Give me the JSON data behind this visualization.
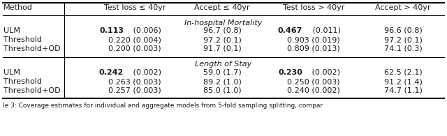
{
  "col_headers": [
    "Method",
    "Test loss ≤ 40yr",
    "Accept ≤ 40yr",
    "Test loss > 40yr",
    "Accept > 40yr"
  ],
  "section1_title": "In-hospital Mortality",
  "section2_title": "Length of Stay",
  "rows": [
    {
      "section": "In-hospital Mortality",
      "method": "ULM",
      "c1": "0.113",
      "c1_suffix": " (0.006)",
      "c1_bold": true,
      "c2": "96.7 (0.8)",
      "c2_bold": false,
      "c3": "0.467",
      "c3_suffix": " (0.011)",
      "c3_bold": true,
      "c4": "96.6 (0.8)",
      "c4_bold": false
    },
    {
      "section": "In-hospital Mortality",
      "method": "Threshold",
      "c1": "0.220 (0.004)",
      "c1_suffix": "",
      "c1_bold": false,
      "c2": "97.2 (0.1)",
      "c2_bold": false,
      "c3": "0.903 (0.019)",
      "c3_suffix": "",
      "c3_bold": false,
      "c4": "97.2 (0.1)",
      "c4_bold": false
    },
    {
      "section": "In-hospital Mortality",
      "method": "Threshold+OD",
      "c1": "0.200 (0.003)",
      "c1_suffix": "",
      "c1_bold": false,
      "c2": "91.7 (0.1)",
      "c2_bold": false,
      "c3": "0.809 (0.013)",
      "c3_suffix": "",
      "c3_bold": false,
      "c4": "74.1 (0.3)",
      "c4_bold": false
    },
    {
      "section": "Length of Stay",
      "method": "ULM",
      "c1": "0.242",
      "c1_suffix": " (0.002)",
      "c1_bold": true,
      "c2": "59.0 (1.7)",
      "c2_bold": false,
      "c3": "0.230",
      "c3_suffix": " (0.002)",
      "c3_bold": true,
      "c4": "62.5 (2.1)",
      "c4_bold": false
    },
    {
      "section": "Length of Stay",
      "method": "Threshold",
      "c1": "0.263 (0.003)",
      "c1_suffix": "",
      "c1_bold": false,
      "c2": "89.2 (1.0)",
      "c2_bold": false,
      "c3": "0.250 (0.003)",
      "c3_suffix": "",
      "c3_bold": false,
      "c4": "91.2 (1.4)",
      "c4_bold": false
    },
    {
      "section": "Length of Stay",
      "method": "Threshold+OD",
      "c1": "0.257 (0.003)",
      "c1_suffix": "",
      "c1_bold": false,
      "c2": "85.0 (1.0)",
      "c2_bold": false,
      "c3": "0.240 (0.002)",
      "c3_suffix": "",
      "c3_bold": false,
      "c4": "74.7 (1.1)",
      "c4_bold": false
    }
  ],
  "caption": "le 3: Coverage estimates for individual and aggregate models from 5-fold sampling splitting, compar",
  "text_color": "#1a1a1a",
  "fontsize": 8.0,
  "header_fontsize": 8.0
}
